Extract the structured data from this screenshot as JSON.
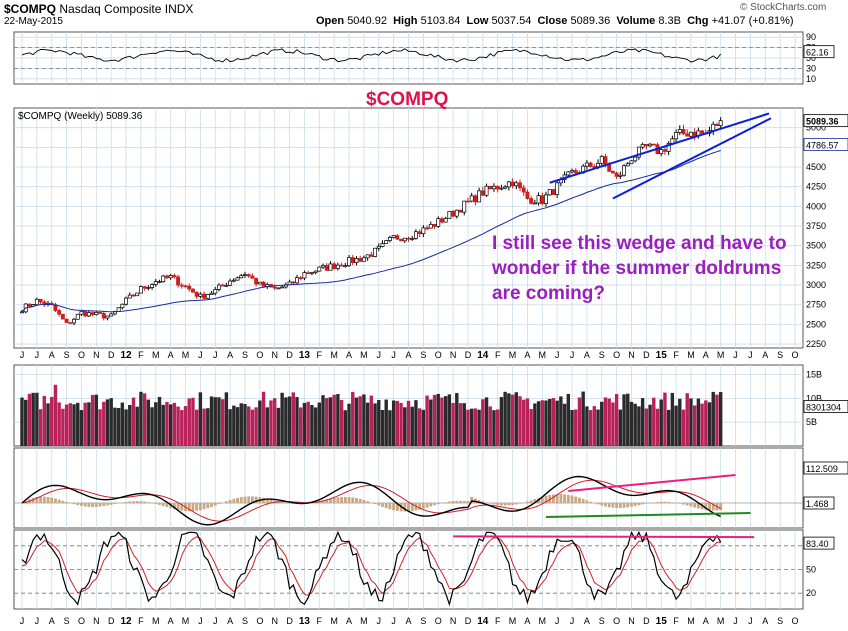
{
  "header": {
    "symbol": "$COMPQ",
    "name": "Nasdaq Composite INDX",
    "date": "22-May-2015",
    "open_label": "Open",
    "open": "5040.92",
    "high_label": "High",
    "high": "5103.84",
    "low_label": "Low",
    "low": "5037.54",
    "close_label": "Close",
    "close": "5089.36",
    "volume_label": "Volume",
    "volume": "8.3B",
    "chg_label": "Chg",
    "chg": "+41.07 (+0.81%)",
    "copyright": "© StockCharts.com"
  },
  "annotations": {
    "title": "$COMPQ",
    "comment_line1": "I still see this wedge and have to",
    "comment_line2": "wonder if the summer doldrums",
    "comment_line3": "are coming?"
  },
  "colors": {
    "grid": "#c9dcea",
    "up_candle": "#000000",
    "down_candle": "#cc2020",
    "moving_average": "#1a2a9a",
    "wedge_lines": "#0b1fd9",
    "title_red": "#e0104a",
    "comment_purple": "#9a1ec0",
    "volume_up": "#2a2a2a",
    "volume_down": "#b8215a",
    "macd_line": "#000000",
    "signal_line": "#d0202a",
    "histogram": "#c8a882",
    "pink_line": "#e8207a",
    "green_line": "#208a20"
  },
  "chart_data": {
    "type": "line",
    "title": "$COMPQ",
    "price_label": "$COMPQ (Weekly) 5089.36",
    "x_months": [
      "J",
      "J",
      "A",
      "S",
      "O",
      "N",
      "D",
      "12",
      "F",
      "M",
      "A",
      "M",
      "J",
      "J",
      "A",
      "S",
      "O",
      "N",
      "D",
      "13",
      "F",
      "M",
      "A",
      "M",
      "J",
      "J",
      "A",
      "S",
      "O",
      "N",
      "D",
      "14",
      "F",
      "M",
      "A",
      "M",
      "J",
      "J",
      "A",
      "S",
      "O",
      "N",
      "D",
      "15",
      "F",
      "M",
      "A",
      "M",
      "J",
      "J",
      "A",
      "S",
      "O"
    ],
    "price": {
      "yticks": [
        2250,
        2500,
        2750,
        3000,
        3250,
        3500,
        3750,
        4000,
        4250,
        4500,
        4750,
        5000
      ],
      "ylim": [
        2200,
        5250
      ],
      "last_close_label": "5089.36",
      "ma_label": "4786.57",
      "anchors_x_month_index": [
        0,
        1,
        2,
        3,
        4,
        5,
        6,
        7,
        8,
        9,
        10,
        11,
        12,
        13,
        14,
        15,
        16,
        17,
        18,
        19,
        20,
        21,
        22,
        23,
        24,
        25,
        26,
        27,
        28,
        29,
        30,
        31,
        32,
        33,
        34,
        35,
        36,
        37,
        38,
        39,
        40,
        41,
        42,
        43,
        44,
        45,
        46,
        47
      ],
      "close_values": [
        2700,
        2800,
        2730,
        2500,
        2650,
        2620,
        2600,
        2800,
        2950,
        3050,
        3100,
        2980,
        2850,
        2930,
        3060,
        3150,
        3000,
        2950,
        3000,
        3150,
        3200,
        3250,
        3300,
        3350,
        3450,
        3600,
        3630,
        3700,
        3800,
        3920,
        4050,
        4180,
        4250,
        4320,
        4100,
        4080,
        4250,
        4420,
        4500,
        4580,
        4350,
        4620,
        4750,
        4700,
        4900,
        4950,
        4920,
        5089
      ]
    },
    "rsi": {
      "yticks": [
        10,
        30,
        50,
        70,
        90
      ],
      "last_label": "62.16"
    },
    "volume": {
      "yticks_labels": [
        "5B",
        "10B",
        "15B"
      ],
      "last_label": "8301304"
    },
    "macd": {
      "last_macd_label": "112.509",
      "last_hist_label": "1.468"
    },
    "stochastic": {
      "yticks": [
        20,
        50,
        80
      ],
      "last_label": "83.40"
    }
  }
}
